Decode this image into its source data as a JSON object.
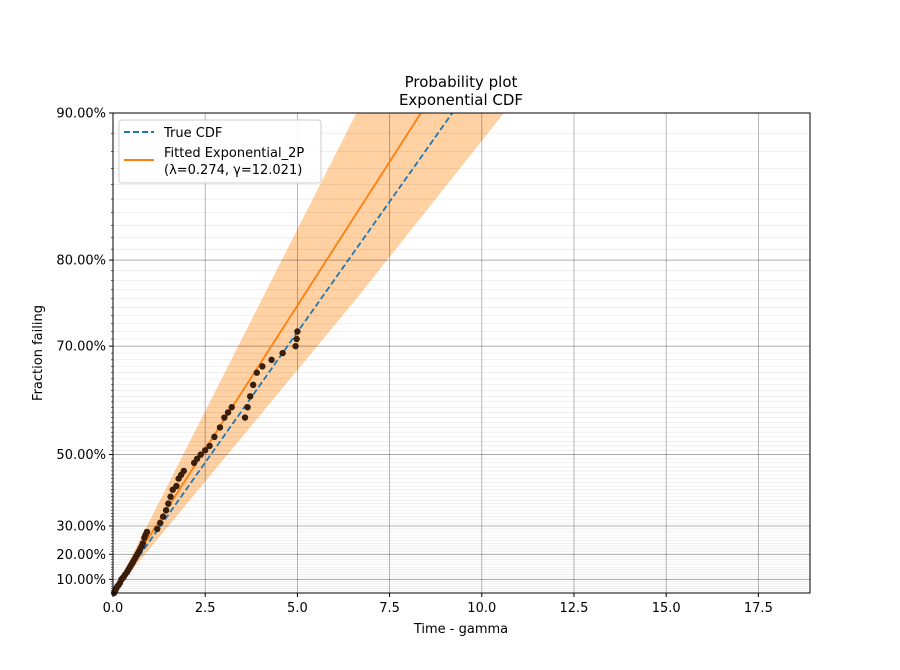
{
  "chart_data": {
    "type": "scatter",
    "title": "Probability plot",
    "subtitle": "Exponential CDF",
    "xlabel": "Time - gamma",
    "ylabel": "Fraction failing",
    "xlim": [
      0,
      18.9
    ],
    "ylim": [
      0.04,
      0.9
    ],
    "y_scale": "exponential probability",
    "grid": true,
    "legend_position": "top-left",
    "x_ticks": [
      {
        "value": 0,
        "label": "0.0"
      },
      {
        "value": 2.5,
        "label": "2.5"
      },
      {
        "value": 5,
        "label": "5.0"
      },
      {
        "value": 7.5,
        "label": "7.5"
      },
      {
        "value": 10,
        "label": "10.0"
      },
      {
        "value": 12.5,
        "label": "12.5"
      },
      {
        "value": 15,
        "label": "15.0"
      },
      {
        "value": 17.5,
        "label": "17.5"
      }
    ],
    "y_ticks": [
      {
        "value": 0.1,
        "label": "10.00%"
      },
      {
        "value": 0.2,
        "label": "20.00%"
      },
      {
        "value": 0.3,
        "label": "30.00%"
      },
      {
        "value": 0.5,
        "label": "50.00%"
      },
      {
        "value": 0.7,
        "label": "70.00%"
      },
      {
        "value": 0.8,
        "label": "80.00%"
      },
      {
        "value": 0.9,
        "label": "90.00%"
      }
    ],
    "series": [
      {
        "name": "True CDF",
        "style": "dashed",
        "color": "#1f77b4",
        "x": [
          0.0,
          9.2
        ],
        "y": [
          0.04,
          0.9
        ]
      },
      {
        "name": "Fitted Exponential_2P",
        "name_line2": "(λ=0.274, γ=12.021)",
        "style": "solid",
        "color": "#ff7f0e",
        "x": [
          0.0,
          8.35
        ],
        "y": [
          0.04,
          0.9
        ]
      }
    ],
    "confidence_band": {
      "color": "#ffcc99",
      "x": [
        0.0,
        6.6,
        10.6
      ],
      "lower": [
        0.04,
        0.76,
        0.9
      ],
      "upper": [
        0.04,
        0.9,
        0.9
      ]
    },
    "points": {
      "color": "#3a1d0b",
      "x": [
        0.03,
        0.06,
        0.09,
        0.12,
        0.15,
        0.19,
        0.23,
        0.26,
        0.29,
        0.33,
        0.38,
        0.42,
        0.46,
        0.5,
        0.54,
        0.58,
        0.62,
        0.66,
        0.7,
        0.74,
        0.78,
        0.81,
        0.85,
        0.88,
        0.92,
        1.2,
        1.28,
        1.36,
        1.44,
        1.5,
        1.56,
        1.62,
        1.72,
        1.78,
        1.85,
        1.92,
        2.2,
        2.28,
        2.38,
        2.5,
        2.62,
        2.75,
        2.9,
        3.02,
        3.12,
        3.22,
        3.58,
        3.65,
        3.72,
        3.8,
        3.9,
        4.05,
        4.3,
        4.6,
        4.95,
        4.98,
        5.0
      ],
      "y": [
        0.04,
        0.05,
        0.06,
        0.07,
        0.075,
        0.085,
        0.1,
        0.105,
        0.11,
        0.12,
        0.13,
        0.14,
        0.15,
        0.16,
        0.17,
        0.18,
        0.19,
        0.2,
        0.21,
        0.22,
        0.23,
        0.24,
        0.26,
        0.27,
        0.28,
        0.29,
        0.31,
        0.33,
        0.35,
        0.37,
        0.39,
        0.41,
        0.42,
        0.44,
        0.45,
        0.46,
        0.48,
        0.49,
        0.5,
        0.51,
        0.52,
        0.54,
        0.56,
        0.58,
        0.59,
        0.6,
        0.58,
        0.6,
        0.62,
        0.64,
        0.66,
        0.67,
        0.68,
        0.69,
        0.7,
        0.71,
        0.72
      ]
    }
  }
}
